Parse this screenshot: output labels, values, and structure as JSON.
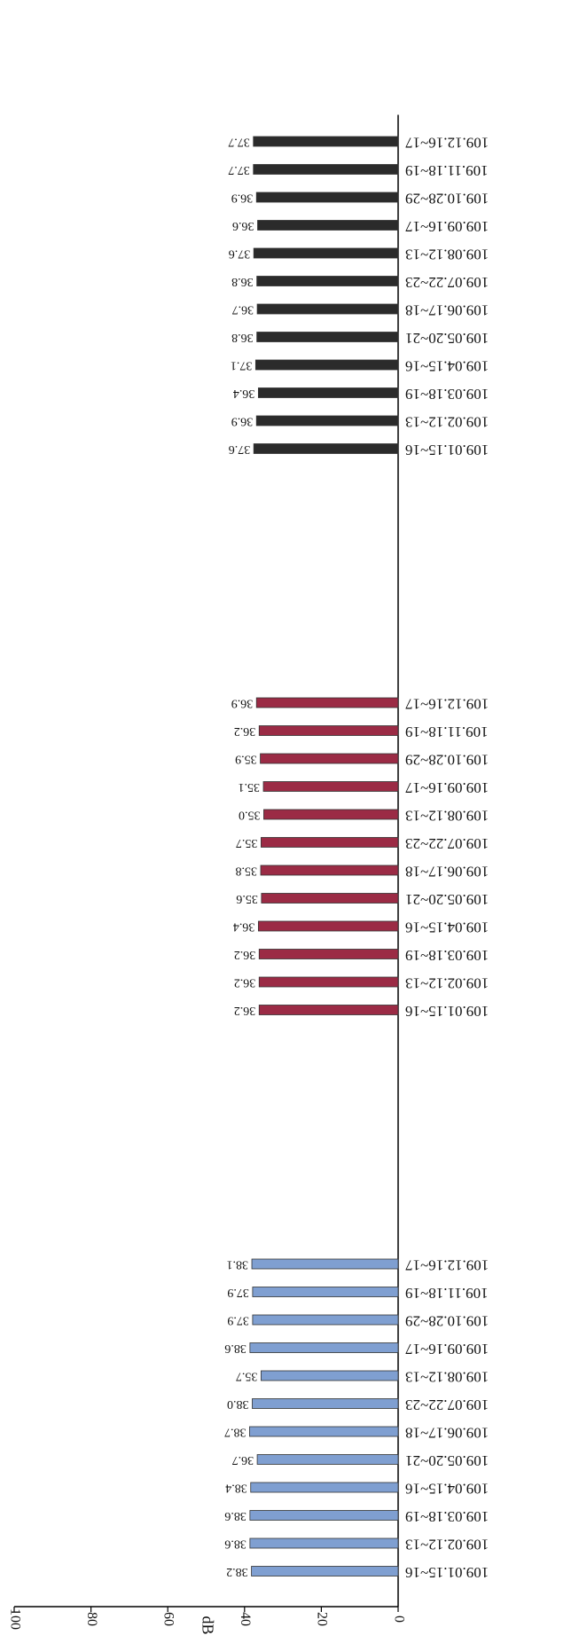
{
  "chart_data": {
    "type": "bar",
    "orientation": "horizontal",
    "rendered_rotation": "upside-down (180 degrees)",
    "title": "",
    "xlabel": "dB",
    "ylabel": "",
    "xlim": [
      0,
      100
    ],
    "x_ticks": [
      "0",
      "20",
      "40",
      "60",
      "80",
      "100"
    ],
    "grid": false,
    "legend": "none",
    "groups": [
      {
        "color": "#7f9fd1",
        "categories": [
          "109.01.15~16",
          "109.02.12~13",
          "109.03.18~19",
          "109.04.15~16",
          "109.05.20~21",
          "109.06.17~18",
          "109.07.22~23",
          "109.08.12~13",
          "109.09.16~17",
          "109.10.28~29",
          "109.11.18~19",
          "109.12.16~17"
        ],
        "values": [
          38.2,
          38.6,
          38.6,
          38.4,
          36.7,
          38.7,
          38.0,
          35.7,
          38.6,
          37.9,
          37.9,
          38.1
        ],
        "labels": [
          "38.2",
          "38.6",
          "38.6",
          "38.4",
          "36.7",
          "38.7",
          "38.0",
          "35.7",
          "38.6",
          "37.9",
          "37.9",
          "38.1"
        ]
      },
      {
        "color": "#9b2b45",
        "categories": [
          "109.01.15~16",
          "109.02.12~13",
          "109.03.18~19",
          "109.04.15~16",
          "109.05.20~21",
          "109.06.17~18",
          "109.07.22~23",
          "109.08.12~13",
          "109.09.16~17",
          "109.10.28~29",
          "109.11.18~19",
          "109.12.16~17"
        ],
        "values": [
          36.2,
          36.2,
          36.2,
          36.4,
          35.6,
          35.8,
          35.7,
          35.0,
          35.1,
          35.9,
          36.2,
          36.9
        ],
        "labels": [
          "36.2",
          "36.2",
          "36.2",
          "36.4",
          "35.6",
          "35.8",
          "35.7",
          "35.0",
          "35.1",
          "35.9",
          "36.2",
          "36.9"
        ]
      },
      {
        "color": "#2b2b2b",
        "categories": [
          "109.01.15~16",
          "109.02.12~13",
          "109.03.18~19",
          "109.04.15~16",
          "109.05.20~21",
          "109.06.17~18",
          "109.07.22~23",
          "109.08.12~13",
          "109.09.16~17",
          "109.10.28~29",
          "109.11.18~19",
          "109.12.16~17"
        ],
        "values": [
          37.6,
          36.9,
          36.4,
          37.1,
          36.8,
          36.7,
          36.8,
          37.6,
          36.6,
          36.9,
          37.7,
          37.7
        ],
        "labels": [
          "37.6",
          "36.9",
          "36.4",
          "37.1",
          "36.8",
          "36.7",
          "36.8",
          "37.6",
          "36.6",
          "36.9",
          "37.7",
          "37.7"
        ]
      }
    ]
  }
}
